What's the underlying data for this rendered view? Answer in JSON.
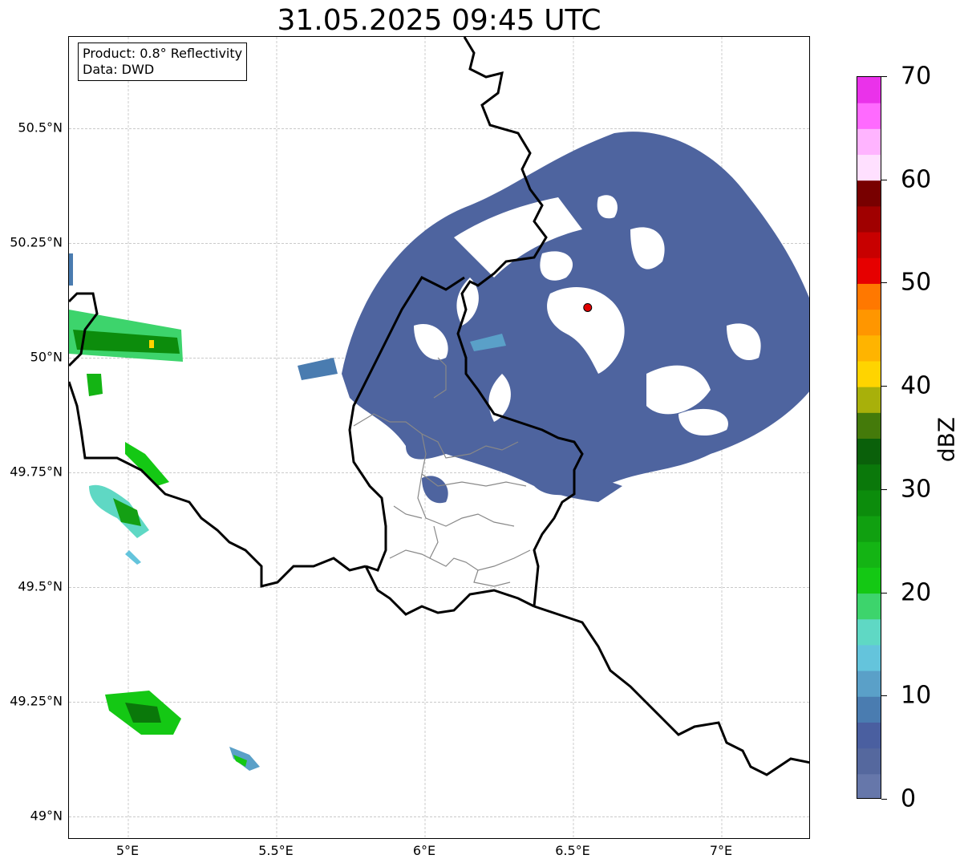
{
  "title": "31.05.2025 09:45 UTC",
  "info_box": {
    "product": "Product: 0.8° Reflectivity",
    "data": "Data: DWD"
  },
  "map": {
    "lon_range": [
      4.8,
      7.3
    ],
    "lat_range": [
      48.95,
      50.7
    ],
    "x_ticks": [
      {
        "lon": 5.0,
        "label": "5°E"
      },
      {
        "lon": 5.5,
        "label": "5.5°E"
      },
      {
        "lon": 6.0,
        "label": "6°E"
      },
      {
        "lon": 6.5,
        "label": "6.5°E"
      },
      {
        "lon": 7.0,
        "label": "7°E"
      }
    ],
    "y_ticks": [
      {
        "lat": 50.5,
        "label": "50.5°N"
      },
      {
        "lat": 50.25,
        "label": "50.25°N"
      },
      {
        "lat": 50.0,
        "label": "50°N"
      },
      {
        "lat": 49.75,
        "label": "49.75°N"
      },
      {
        "lat": 49.5,
        "label": "49.5°N"
      },
      {
        "lat": 49.25,
        "label": "49.25°N"
      },
      {
        "lat": 49.0,
        "label": "49°N"
      }
    ],
    "radar_site": {
      "lon": 6.548,
      "lat": 50.11,
      "color": "#e00000"
    },
    "gridlines": true
  },
  "colorbar": {
    "label": "dBZ",
    "min": 0,
    "max": 70,
    "ticks": [
      "0",
      "10",
      "20",
      "30",
      "40",
      "50",
      "60",
      "70"
    ],
    "colors": [
      "#6677aa",
      "#55689e",
      "#4a5fa0",
      "#4a7cb0",
      "#5aa0c8",
      "#64c4dc",
      "#5fd8c4",
      "#3dd46c",
      "#14c814",
      "#14b414",
      "#10a010",
      "#0c8c0c",
      "#0a780a",
      "#0a600a",
      "#447a0a",
      "#a8b00a",
      "#ffd400",
      "#ffb400",
      "#ff9600",
      "#ff7800",
      "#e60000",
      "#c80000",
      "#a00000",
      "#780000",
      "#ffe0ff",
      "#ffb4ff",
      "#ff6aff",
      "#ea32ea"
    ]
  }
}
